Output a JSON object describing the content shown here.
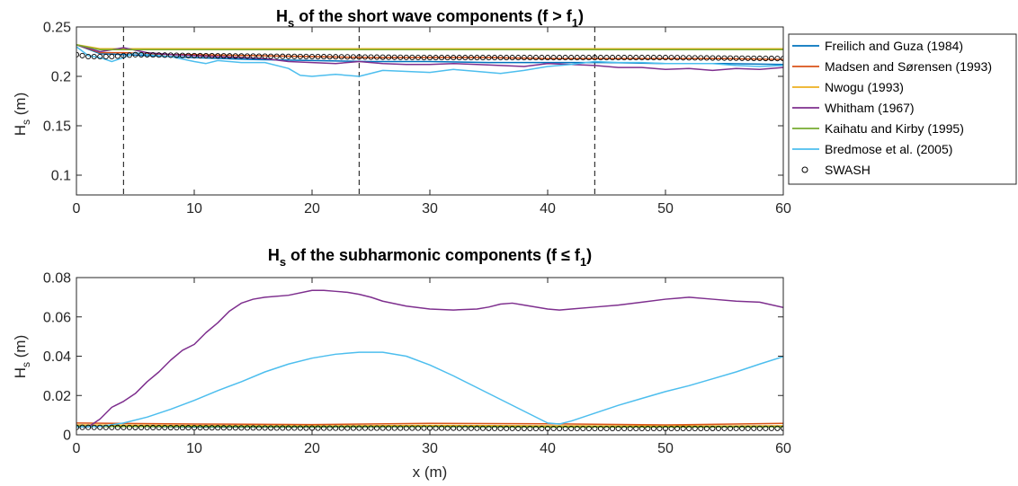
{
  "chart_data": [
    {
      "type": "line",
      "title": {
        "main": "H",
        "sub": "s",
        "rest": " of the short wave components (f > f",
        "sub2": "1",
        "end": ")"
      },
      "ylabel": {
        "main": "H",
        "sub": "s",
        "rest": " (m)"
      },
      "xlabel": "",
      "xlim": [
        0,
        60
      ],
      "ylim": [
        0.08,
        0.25
      ],
      "xticks": [
        0,
        10,
        20,
        30,
        40,
        50,
        60
      ],
      "yticks": [
        0.1,
        0.15,
        0.2,
        0.25
      ],
      "ytick_labels": [
        "0.1",
        "0.15",
        "0.2",
        "0.25"
      ],
      "xtick_labels": [
        "0",
        "10",
        "20",
        "30",
        "40",
        "50",
        "60"
      ],
      "vlines": [
        4,
        24,
        44
      ],
      "legend_position": "outside-right",
      "series": [
        {
          "name": "Freilich and Guza (1984)",
          "color": "#0072BD",
          "x": [
            0,
            2,
            4,
            6,
            8,
            10,
            15,
            20,
            25,
            30,
            35,
            40,
            45,
            50,
            55,
            60
          ],
          "y": [
            0.232,
            0.223,
            0.222,
            0.221,
            0.22,
            0.219,
            0.217,
            0.216,
            0.215,
            0.215,
            0.214,
            0.214,
            0.214,
            0.213,
            0.213,
            0.212
          ]
        },
        {
          "name": "Madsen and Sørensen (1993)",
          "color": "#D95319",
          "x": [
            0,
            2,
            4,
            6,
            8,
            10,
            15,
            20,
            25,
            30,
            35,
            40,
            45,
            50,
            55,
            60
          ],
          "y": [
            0.232,
            0.224,
            0.224,
            0.223,
            0.222,
            0.222,
            0.221,
            0.22,
            0.219,
            0.219,
            0.219,
            0.218,
            0.218,
            0.218,
            0.218,
            0.217
          ]
        },
        {
          "name": "Nwogu (1993)",
          "color": "#EDB120",
          "x": [
            0,
            2,
            4,
            6,
            8,
            10,
            15,
            20,
            25,
            30,
            35,
            40,
            45,
            50,
            55,
            60
          ],
          "y": [
            0.232,
            0.228,
            0.228,
            0.228,
            0.228,
            0.228,
            0.228,
            0.228,
            0.228,
            0.228,
            0.228,
            0.228,
            0.228,
            0.228,
            0.228,
            0.228
          ]
        },
        {
          "name": "Whitham (1967)",
          "color": "#7E2F8E",
          "x": [
            0,
            2,
            4,
            6,
            8,
            10,
            12,
            14,
            16,
            18,
            20,
            22,
            24,
            26,
            28,
            30,
            32,
            34,
            36,
            38,
            40,
            42,
            44,
            46,
            48,
            50,
            52,
            54,
            56,
            58,
            60
          ],
          "y": [
            0.232,
            0.225,
            0.229,
            0.224,
            0.222,
            0.221,
            0.22,
            0.219,
            0.218,
            0.215,
            0.214,
            0.213,
            0.215,
            0.213,
            0.212,
            0.212,
            0.213,
            0.212,
            0.211,
            0.21,
            0.213,
            0.212,
            0.211,
            0.209,
            0.209,
            0.207,
            0.208,
            0.206,
            0.208,
            0.207,
            0.209
          ]
        },
        {
          "name": "Kaihatu and Kirby (1995)",
          "color": "#77AC30",
          "x": [
            0,
            2,
            4,
            6,
            8,
            10,
            15,
            20,
            25,
            30,
            35,
            40,
            45,
            50,
            55,
            60
          ],
          "y": [
            0.232,
            0.227,
            0.227,
            0.227,
            0.227,
            0.227,
            0.227,
            0.227,
            0.227,
            0.227,
            0.227,
            0.227,
            0.227,
            0.227,
            0.227,
            0.227
          ]
        },
        {
          "name": "Bredmose et al. (2005)",
          "color": "#4DBEEE",
          "x": [
            0,
            1,
            2,
            3,
            4,
            5,
            6,
            8,
            10,
            11,
            12,
            14,
            16,
            18,
            19,
            20,
            22,
            24,
            26,
            28,
            30,
            32,
            34,
            36,
            38,
            40,
            42,
            44,
            46,
            48,
            50,
            52,
            54,
            56,
            58,
            60
          ],
          "y": [
            0.23,
            0.221,
            0.219,
            0.215,
            0.219,
            0.224,
            0.222,
            0.22,
            0.215,
            0.213,
            0.216,
            0.214,
            0.214,
            0.208,
            0.201,
            0.2,
            0.202,
            0.2,
            0.206,
            0.205,
            0.204,
            0.207,
            0.205,
            0.203,
            0.206,
            0.21,
            0.212,
            0.215,
            0.214,
            0.214,
            0.213,
            0.213,
            0.213,
            0.211,
            0.21,
            0.211
          ]
        },
        {
          "name": "SWASH",
          "color": "#000000",
          "marker": "circle",
          "x_start": 0,
          "x_step": 0.5,
          "x_end": 60,
          "y_profile": {
            "x": [
              0,
              1,
              3,
              5,
              10,
              20,
              30,
              40,
              50,
              60
            ],
            "y": [
              0.222,
              0.22,
              0.22,
              0.222,
              0.221,
              0.22,
              0.219,
              0.219,
              0.219,
              0.218
            ]
          }
        }
      ]
    },
    {
      "type": "line",
      "title": {
        "main": "H",
        "sub": "s",
        "rest": " of the subharmonic components (f ≤ f",
        "sub2": "1",
        "end": ")"
      },
      "ylabel": {
        "main": "H",
        "sub": "s",
        "rest": " (m)"
      },
      "xlabel": "x (m)",
      "xlim": [
        0,
        60
      ],
      "ylim": [
        0,
        0.08
      ],
      "xticks": [
        0,
        10,
        20,
        30,
        40,
        50,
        60
      ],
      "yticks": [
        0,
        0.02,
        0.04,
        0.06,
        0.08
      ],
      "ytick_labels": [
        "0",
        "0.02",
        "0.04",
        "0.06",
        "0.08"
      ],
      "xtick_labels": [
        "0",
        "10",
        "20",
        "30",
        "40",
        "50",
        "60"
      ],
      "series": [
        {
          "name": "Freilich and Guza (1984)",
          "color": "#0072BD",
          "x": [
            0,
            10,
            20,
            30,
            40,
            50,
            60
          ],
          "y": [
            0.0045,
            0.004,
            0.004,
            0.0042,
            0.004,
            0.004,
            0.0042
          ]
        },
        {
          "name": "Madsen and Sørensen (1993)",
          "color": "#D95319",
          "x": [
            0,
            10,
            20,
            30,
            40,
            50,
            60
          ],
          "y": [
            0.006,
            0.0055,
            0.0052,
            0.0058,
            0.0056,
            0.005,
            0.0058
          ]
        },
        {
          "name": "Nwogu (1993)",
          "color": "#EDB120",
          "x": [
            0,
            10,
            20,
            30,
            40,
            50,
            60
          ],
          "y": [
            0.005,
            0.0047,
            0.0045,
            0.0048,
            0.0046,
            0.0044,
            0.0046
          ]
        },
        {
          "name": "Whitham (1967)",
          "color": "#7E2F8E",
          "x": [
            0,
            1,
            2,
            3,
            4,
            5,
            6,
            7,
            8,
            9,
            10,
            11,
            12,
            13,
            14,
            15,
            16,
            18,
            20,
            21,
            22,
            23,
            24,
            25,
            26,
            28,
            30,
            32,
            34,
            35,
            36,
            37,
            38,
            40,
            41,
            42,
            44,
            46,
            48,
            50,
            51,
            52,
            54,
            56,
            58,
            60
          ],
          "y": [
            0.004,
            0.004,
            0.008,
            0.014,
            0.017,
            0.021,
            0.027,
            0.032,
            0.038,
            0.043,
            0.046,
            0.052,
            0.057,
            0.063,
            0.067,
            0.069,
            0.07,
            0.071,
            0.0735,
            0.0735,
            0.073,
            0.0725,
            0.0715,
            0.07,
            0.068,
            0.0655,
            0.064,
            0.0635,
            0.064,
            0.065,
            0.0665,
            0.067,
            0.066,
            0.064,
            0.0635,
            0.064,
            0.065,
            0.066,
            0.0675,
            0.069,
            0.0695,
            0.07,
            0.069,
            0.068,
            0.0675,
            0.0648
          ]
        },
        {
          "name": "Kaihatu and Kirby (1995)",
          "color": "#77AC30",
          "x": [
            0,
            10,
            20,
            30,
            40,
            50,
            60
          ],
          "y": [
            0.0042,
            0.0042,
            0.0041,
            0.0042,
            0.004,
            0.004,
            0.0041
          ]
        },
        {
          "name": "Bredmose et al. (2005)",
          "color": "#4DBEEE",
          "x": [
            0,
            2,
            4,
            6,
            8,
            10,
            12,
            14,
            16,
            18,
            20,
            22,
            24,
            26,
            28,
            30,
            32,
            34,
            36,
            38,
            40,
            41,
            42,
            44,
            46,
            48,
            50,
            52,
            54,
            56,
            58,
            60
          ],
          "y": [
            0.004,
            0.0042,
            0.006,
            0.009,
            0.013,
            0.0175,
            0.0225,
            0.027,
            0.032,
            0.036,
            0.039,
            0.041,
            0.042,
            0.042,
            0.04,
            0.0355,
            0.03,
            0.024,
            0.018,
            0.012,
            0.006,
            0.0055,
            0.007,
            0.011,
            0.015,
            0.0185,
            0.022,
            0.025,
            0.0285,
            0.032,
            0.036,
            0.0398
          ]
        },
        {
          "name": "SWASH",
          "color": "#000000",
          "marker": "circle",
          "x_start": 0,
          "x_step": 0.5,
          "x_end": 60,
          "y_profile": {
            "x": [
              0,
              10,
              20,
              30,
              40,
              50,
              60
            ],
            "y": [
              0.0038,
              0.0036,
              0.0034,
              0.0034,
              0.0032,
              0.0032,
              0.0033
            ]
          }
        }
      ]
    }
  ]
}
